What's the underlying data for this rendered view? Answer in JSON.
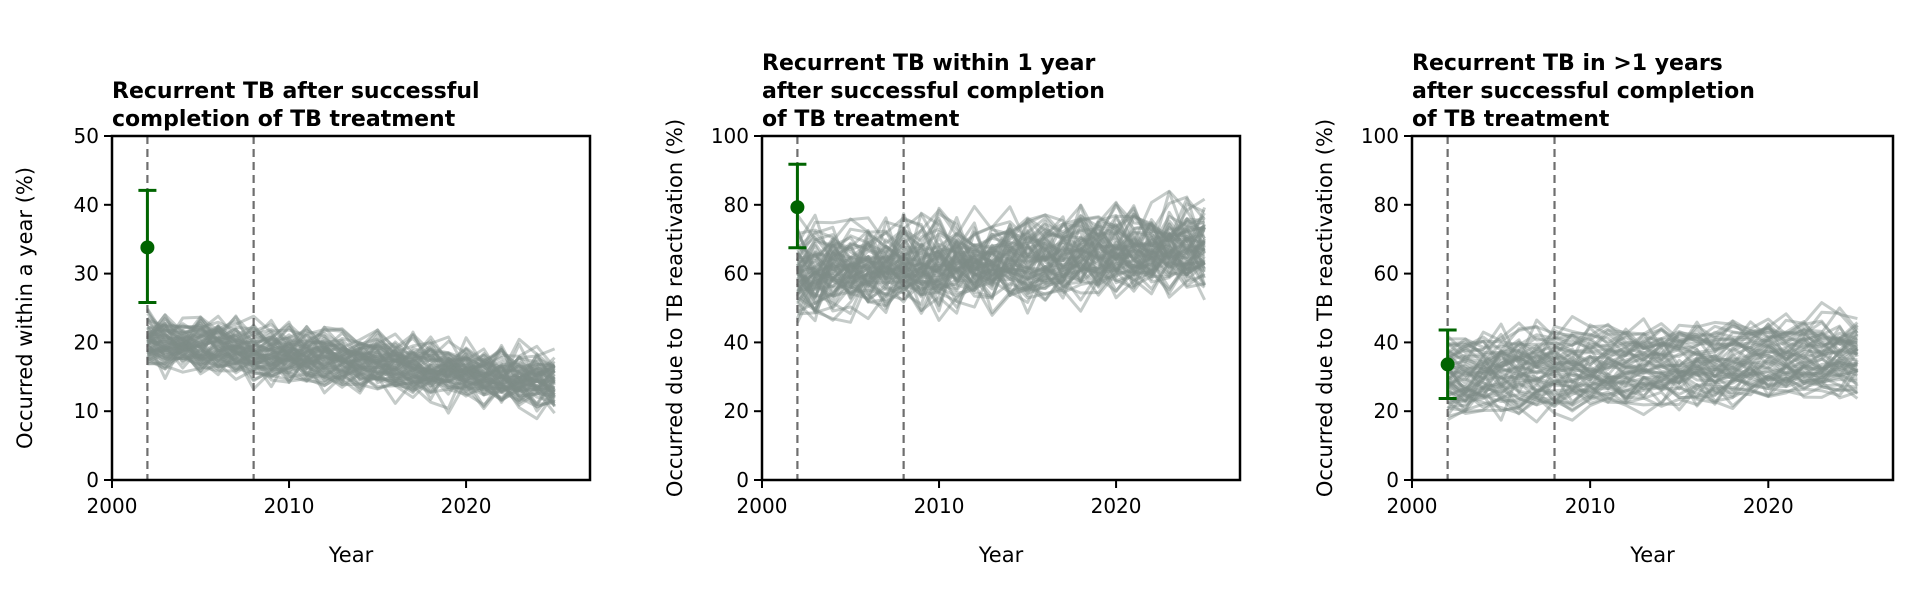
{
  "colors": {
    "simulation": "#7f8c87",
    "target": "#006400",
    "reference_line": "#555555"
  },
  "chart_data": [
    {
      "type": "line",
      "title": "Recurrent TB after successful\ncompletion of TB treatment",
      "xlabel": "Year",
      "ylabel": "Occurred within a year (%)",
      "xlim": [
        2000,
        2027
      ],
      "ylim": [
        0,
        50
      ],
      "xticks": [
        2000,
        2010,
        2020
      ],
      "yticks": [
        0,
        10,
        20,
        30,
        40,
        50
      ],
      "reference_lines_x": [
        2002,
        2008
      ],
      "target": {
        "x": 2002,
        "y": 33.8,
        "low": 25.8,
        "high": 42.1
      },
      "series_params": {
        "x_start": 2002,
        "x_end": 2025,
        "count": 70,
        "mean_start": 20.5,
        "mean_end": 14.5,
        "spread": 2.2,
        "noise": 3.3,
        "min_y": 2,
        "max_y": 35
      },
      "grid": false
    },
    {
      "type": "line",
      "title": "Recurrent TB within 1 year\nafter successful completion\nof TB treatment",
      "xlabel": "Year",
      "ylabel": "Occurred due to TB reactivation (%)",
      "xlim": [
        2000,
        2027
      ],
      "ylim": [
        0,
        100
      ],
      "xticks": [
        2000,
        2010,
        2020
      ],
      "yticks": [
        0,
        20,
        40,
        60,
        80,
        100
      ],
      "reference_lines_x": [
        2002,
        2008
      ],
      "target": {
        "x": 2002,
        "y": 79.3,
        "low": 67.5,
        "high": 91.8
      },
      "series_params": {
        "x_start": 2002,
        "x_end": 2025,
        "count": 70,
        "mean_start": 60,
        "mean_end": 68,
        "spread": 7,
        "noise": 10,
        "min_y": 22,
        "max_y": 100
      },
      "grid": false
    },
    {
      "type": "line",
      "title": "Recurrent TB in >1 years\nafter successful completion\nof TB treatment",
      "xlabel": "Year",
      "ylabel": "Occurred due to TB reactivation (%)",
      "xlim": [
        2000,
        2027
      ],
      "ylim": [
        0,
        100
      ],
      "xticks": [
        2000,
        2010,
        2020
      ],
      "yticks": [
        0,
        20,
        40,
        60,
        80,
        100
      ],
      "reference_lines_x": [
        2002,
        2008
      ],
      "target": {
        "x": 2002,
        "y": 33.6,
        "low": 23.7,
        "high": 43.6
      },
      "series_params": {
        "x_start": 2002,
        "x_end": 2025,
        "count": 60,
        "mean_start": 30,
        "mean_end": 36,
        "spread": 10,
        "noise": 6,
        "min_y": 5,
        "max_y": 70
      },
      "grid": false
    }
  ]
}
